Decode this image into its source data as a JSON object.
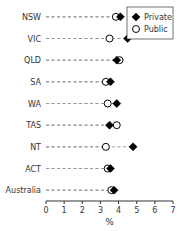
{
  "chart_data": {
    "type": "dot",
    "orientation": "horizontal",
    "categories": [
      "NSW",
      "VIC",
      "QLD",
      "SA",
      "WA",
      "TAS",
      "NT",
      "ACT",
      "Australia"
    ],
    "series": [
      {
        "name": "Private",
        "color": "black",
        "marker": "diamond",
        "values": [
          4.1,
          4.5,
          3.9,
          3.55,
          3.9,
          3.5,
          4.8,
          3.55,
          3.75
        ]
      },
      {
        "name": "Public",
        "color": "white",
        "marker": "circle",
        "values": [
          3.85,
          3.5,
          4.05,
          3.3,
          3.4,
          3.9,
          3.3,
          3.4,
          3.6
        ]
      }
    ],
    "xlim": [
      0,
      7
    ],
    "xticks": [
      0,
      1,
      2,
      3,
      4,
      5,
      6,
      7
    ],
    "xlabel": "%",
    "legend": "upper right",
    "grid": false
  }
}
